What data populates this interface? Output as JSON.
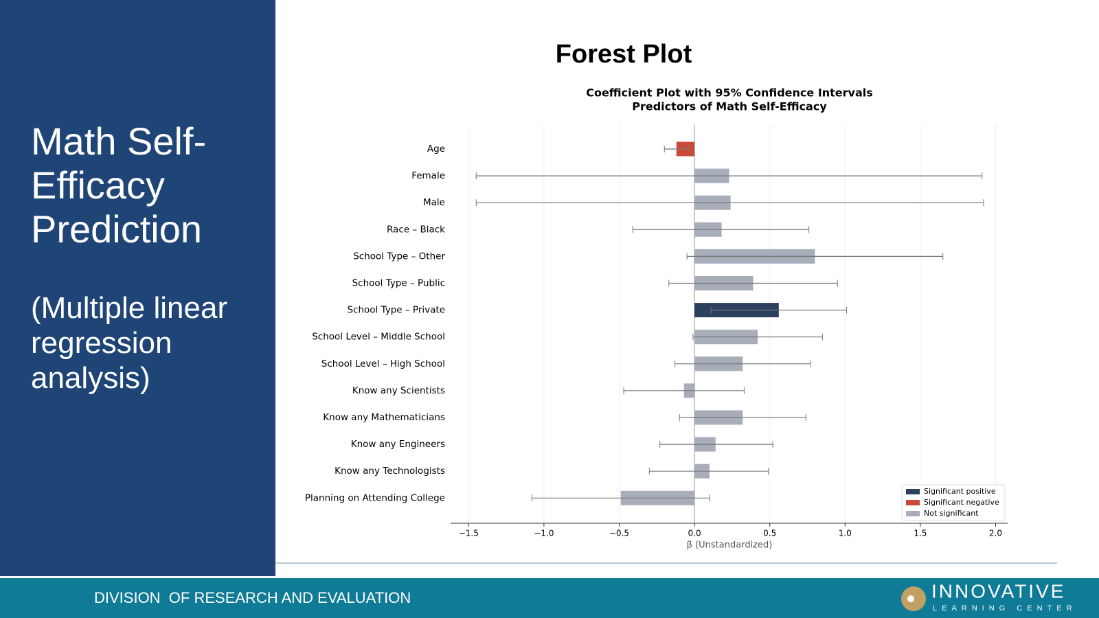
{
  "sidebar": {
    "title": "Math Self-Efficacy Prediction",
    "subtitle": "(Multiple linear regression analysis)"
  },
  "heading": "Forest Plot",
  "footer": {
    "text": "DIVISION  OF RESEARCH AND EVALUATION",
    "logo_name": "INNOVATIVE",
    "logo_sub": "LEARNING CENTER"
  },
  "chart_data": {
    "type": "forest",
    "title": "Coefficient Plot with 95% Confidence Intervals",
    "subtitle": "Predictors of Math Self-Efficacy",
    "xlabel": "β (Unstandardized)",
    "categories": [
      "Age",
      "Female",
      "Male",
      "Race – Black",
      "School Type – Other",
      "School Type – Public",
      "School Type – Private",
      "School Level – Middle School",
      "School Level – High School",
      "Know any Scientists",
      "Know any Mathematicians",
      "Know any Engineers",
      "Know any Technologists",
      "Planning on Attending College"
    ],
    "values": [
      -0.12,
      0.23,
      0.24,
      0.18,
      0.8,
      0.39,
      0.56,
      0.42,
      0.32,
      -0.07,
      0.32,
      0.14,
      0.1,
      -0.49
    ],
    "ci_low": [
      -0.2,
      -1.45,
      -1.45,
      -0.41,
      -0.05,
      -0.17,
      0.11,
      -0.01,
      -0.13,
      -0.47,
      -0.1,
      -0.23,
      -0.3,
      -1.08
    ],
    "ci_high": [
      -0.04,
      1.91,
      1.92,
      0.76,
      1.65,
      0.95,
      1.01,
      0.85,
      0.77,
      0.33,
      0.74,
      0.52,
      0.49,
      0.1
    ],
    "colors": [
      "#c9493b",
      "#a8adba",
      "#a8adba",
      "#a8adba",
      "#a8adba",
      "#a8adba",
      "#2b3f5e",
      "#a8adba",
      "#a8adba",
      "#a8adba",
      "#a8adba",
      "#a8adba",
      "#a8adba",
      "#a8adba"
    ],
    "legend": [
      {
        "name": "Significant positive",
        "color": "#2b3f5e"
      },
      {
        "name": "Significant negative",
        "color": "#c9493b"
      },
      {
        "name": "Not significant",
        "color": "#a8adba"
      }
    ],
    "legend_position": "lower right",
    "xlim": [
      -1.62,
      2.08
    ],
    "xticks": [
      {
        "value": -1.5,
        "label": "−1.5"
      },
      {
        "value": -1.0,
        "label": "−1.0"
      },
      {
        "value": -0.5,
        "label": "−0.5"
      },
      {
        "value": 0,
        "label": "0.0"
      },
      {
        "value": 0.5,
        "label": "0.5"
      },
      {
        "value": 1.0,
        "label": "1.0"
      },
      {
        "value": 1.5,
        "label": "1.5"
      },
      {
        "value": 2.0,
        "label": "2.0"
      }
    ],
    "grid": true
  }
}
